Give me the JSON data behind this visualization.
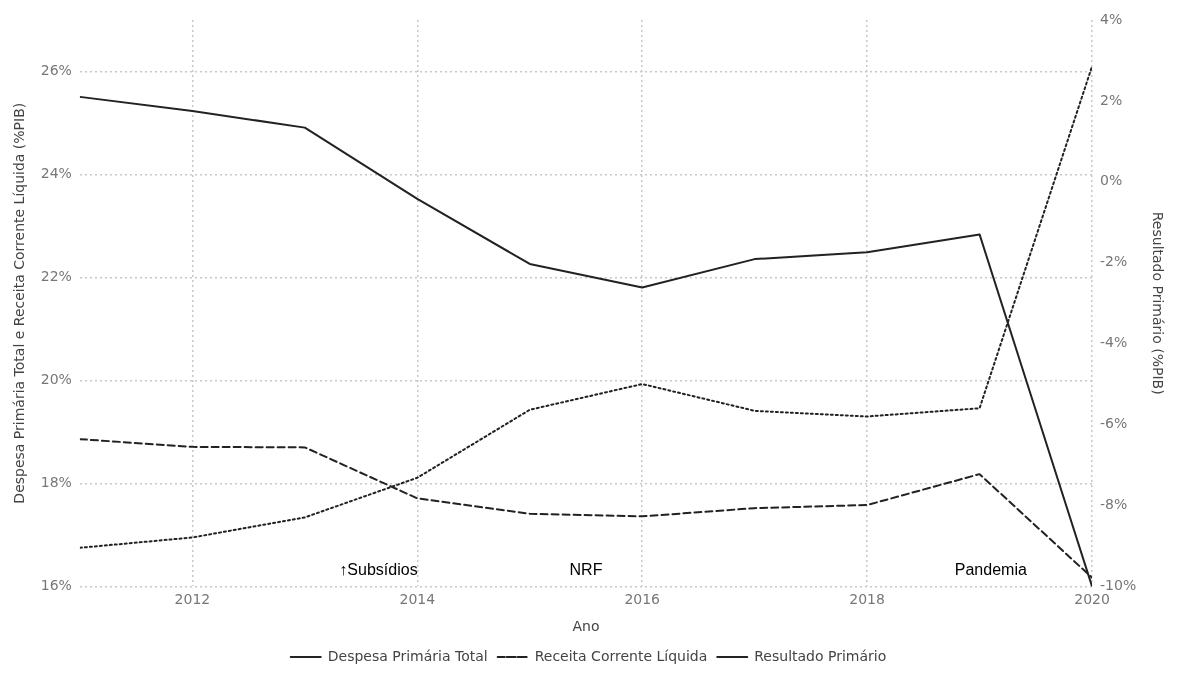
{
  "chart_data": {
    "type": "line",
    "xlabel": "Ano",
    "ylabel": "Despesa Primária Total e Receita Corrente Líquida (%PIB)",
    "y2label": "Resultado Primário (%PIB)",
    "x": [
      2011,
      2012,
      2013,
      2014,
      2015,
      2016,
      2017,
      2018,
      2019,
      2020
    ],
    "series": [
      {
        "name": "Despesa Primária Total",
        "color": "#222222",
        "line_style": "dotted",
        "values": [
          16.75,
          16.95,
          17.34,
          18.11,
          19.43,
          19.93,
          19.41,
          19.3,
          19.46,
          26.1
        ]
      },
      {
        "name": "Receita Corrente Líquida",
        "color": "#222222",
        "line_style": "dashed",
        "values": [
          18.86,
          18.71,
          18.7,
          17.71,
          17.41,
          17.36,
          17.52,
          17.58,
          18.18,
          16.17
        ]
      },
      {
        "name": "Resultado Primário",
        "color": "#222222",
        "line_style": "solid",
        "axis": "y2",
        "values": [
          2.1,
          1.75,
          1.34,
          -0.42,
          -2.03,
          -2.61,
          -1.91,
          -1.74,
          -1.3,
          -10
        ]
      }
    ],
    "xlim": [
      2011,
      2020
    ],
    "xticks": [
      2012,
      2014,
      2016,
      2018,
      2020
    ],
    "ylim": [
      16,
      27
    ],
    "yticks": [
      {
        "value": 16,
        "label": "16%"
      },
      {
        "value": 18,
        "label": "18%"
      },
      {
        "value": 20,
        "label": "20%"
      },
      {
        "value": 22,
        "label": "22%"
      },
      {
        "value": 24,
        "label": "24%"
      },
      {
        "value": 26,
        "label": "26%"
      }
    ],
    "y2lim": [
      -10,
      4
    ],
    "y2ticks": [
      {
        "value": -10,
        "label": "-10%"
      },
      {
        "value": -8,
        "label": "-8%"
      },
      {
        "value": -6,
        "label": "-6%"
      },
      {
        "value": -4,
        "label": "-4%"
      },
      {
        "value": -2,
        "label": "-2%"
      },
      {
        "value": 0,
        "label": "0%"
      },
      {
        "value": 2,
        "label": "2%"
      },
      {
        "value": 4,
        "label": "4%"
      }
    ],
    "annotations": [
      "↑Subsídios",
      "NRF",
      "Pandemia"
    ],
    "grid": true,
    "legend": "bottom",
    "marker": "none"
  }
}
